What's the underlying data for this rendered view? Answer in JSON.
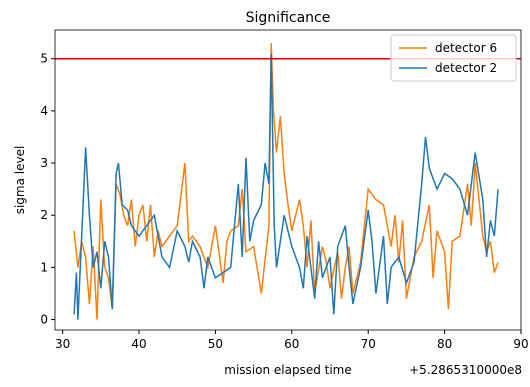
{
  "chart_data": {
    "type": "line",
    "title": "Significance",
    "xlabel": "mission elapsed time",
    "ylabel": "sigma level",
    "x_offset_label": "+5.2865310000e8",
    "xlim": [
      29,
      90
    ],
    "xticks": [
      30,
      40,
      50,
      60,
      70,
      80,
      90
    ],
    "ylim": [
      -0.2,
      5.55
    ],
    "yticks": [
      0,
      1,
      2,
      3,
      4,
      5
    ],
    "hline": {
      "value": 5,
      "color": "#e00000"
    },
    "legend": "upper right",
    "series": [
      {
        "name": "detector 6",
        "color": "#ff7f0e",
        "x": [
          31.5,
          32,
          32.5,
          33,
          33.5,
          34,
          34.5,
          35,
          35.5,
          36,
          36.5,
          37,
          37.5,
          38,
          38.5,
          39,
          39.5,
          40,
          40.5,
          41,
          41.5,
          42,
          42.5,
          43,
          44,
          45,
          46,
          46.5,
          47,
          48,
          49,
          50,
          51,
          51.5,
          52,
          53,
          53.5,
          54,
          55,
          56,
          57,
          57.3,
          57.6,
          58,
          58.5,
          59,
          59.5,
          60,
          61,
          61.5,
          62,
          62.5,
          63,
          64,
          64.5,
          65,
          66,
          66.5,
          67,
          67.5,
          68,
          69,
          70,
          71,
          72,
          73,
          73.5,
          74,
          74.5,
          75,
          76,
          77,
          78,
          78.5,
          79,
          80,
          80.5,
          81,
          82,
          83,
          83.5,
          84,
          84.5,
          85,
          85.5,
          86,
          86.5,
          87
        ],
        "values": [
          1.7,
          1.0,
          1.5,
          1.2,
          0.3,
          1.4,
          0.0,
          2.3,
          1.0,
          0.8,
          0.2,
          2.6,
          2.4,
          2.0,
          1.8,
          2.3,
          1.4,
          2.0,
          2.2,
          1.5,
          2.2,
          1.2,
          1.7,
          1.4,
          1.6,
          1.8,
          3.0,
          1.5,
          1.6,
          1.4,
          1.0,
          1.8,
          0.7,
          1.5,
          1.7,
          1.8,
          2.5,
          1.3,
          1.4,
          0.5,
          1.8,
          5.3,
          4.0,
          3.2,
          3.9,
          2.8,
          2.2,
          1.7,
          2.3,
          1.8,
          1.0,
          1.9,
          0.5,
          1.4,
          1.1,
          0.6,
          1.3,
          0.4,
          1.0,
          1.4,
          0.5,
          1.1,
          2.5,
          2.3,
          2.2,
          1.4,
          2.0,
          1.1,
          1.9,
          0.4,
          1.2,
          1.5,
          2.2,
          0.8,
          1.7,
          1.3,
          0.2,
          1.5,
          1.6,
          2.6,
          1.8,
          3.0,
          2.3,
          1.6,
          1.3,
          1.5,
          0.9,
          1.1
        ]
      },
      {
        "name": "detector 2",
        "color": "#1f77b4",
        "x": [
          31.5,
          31.8,
          32,
          32.5,
          33,
          33.5,
          34,
          34.5,
          35,
          35.5,
          36,
          36.5,
          37,
          37.3,
          37.8,
          38.5,
          39,
          40,
          41,
          42,
          43,
          44,
          45,
          46,
          46.5,
          47,
          48,
          48.5,
          49,
          50,
          51,
          52,
          52.5,
          53,
          53.5,
          54,
          54.5,
          55,
          56,
          56.5,
          57,
          57.3,
          57.7,
          58,
          59,
          60,
          61,
          61.5,
          62,
          63,
          63.5,
          64,
          65,
          65.5,
          66,
          67,
          67.5,
          68,
          69,
          70,
          70.5,
          71,
          72,
          72.5,
          73,
          74,
          75,
          76,
          77,
          77.5,
          78,
          79,
          80,
          81,
          82,
          83,
          84,
          85,
          85.5,
          86,
          86.5,
          87
        ],
        "values": [
          0.1,
          0.9,
          0.0,
          1.6,
          3.3,
          2.0,
          1.0,
          1.3,
          0.6,
          1.5,
          1.2,
          0.2,
          2.8,
          3.0,
          2.2,
          2.1,
          1.8,
          1.6,
          1.8,
          2.0,
          1.2,
          1.0,
          1.7,
          1.4,
          1.1,
          1.5,
          1.2,
          0.6,
          1.2,
          0.8,
          0.9,
          1.0,
          1.8,
          2.6,
          1.2,
          3.1,
          1.5,
          1.9,
          2.2,
          3.0,
          2.6,
          5.1,
          1.8,
          1.0,
          2.0,
          1.4,
          1.0,
          0.6,
          1.6,
          0.4,
          1.5,
          0.8,
          1.2,
          0.1,
          1.4,
          1.8,
          1.0,
          0.3,
          1.0,
          2.1,
          1.5,
          0.5,
          1.6,
          0.3,
          1.0,
          1.2,
          0.7,
          1.1,
          2.6,
          3.5,
          2.9,
          2.5,
          2.8,
          2.7,
          2.5,
          2.0,
          3.2,
          2.3,
          1.2,
          1.9,
          1.6,
          2.5
        ]
      }
    ]
  }
}
